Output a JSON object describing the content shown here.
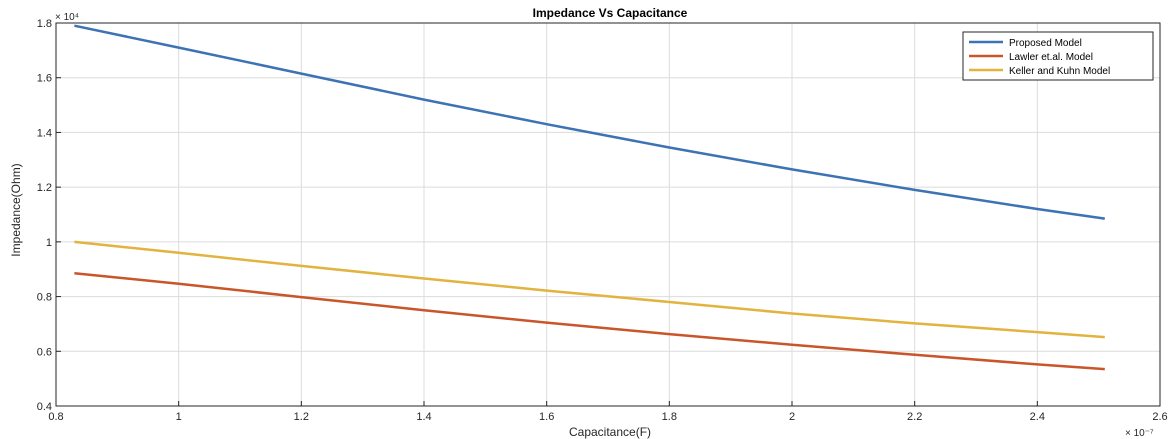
{
  "chart_data": {
    "type": "line",
    "title": "Impedance Vs Capacitance",
    "xlabel": "Capacitance(F)",
    "ylabel": "Impedance(Ohm)",
    "x_multiplier": "× 10⁻⁷",
    "y_multiplier": "× 10⁴",
    "xlim": [
      0.8,
      2.6
    ],
    "ylim": [
      0.4,
      1.8
    ],
    "x_ticks": [
      "0.8",
      "1",
      "1.2",
      "1.4",
      "1.6",
      "1.8",
      "2",
      "2.2",
      "2.4",
      "2.6"
    ],
    "y_ticks": [
      "0.4",
      "0.6",
      "0.8",
      "1",
      "1.2",
      "1.4",
      "1.6",
      "1.8"
    ],
    "grid": true,
    "legend_position": "top-right",
    "x": [
      0.83,
      1.0,
      1.2,
      1.4,
      1.6,
      1.8,
      2.0,
      2.2,
      2.4,
      2.51
    ],
    "series": [
      {
        "name": "Proposed Model",
        "color": "#3d72b4",
        "values": [
          1.79,
          1.71,
          1.615,
          1.52,
          1.43,
          1.345,
          1.265,
          1.19,
          1.12,
          1.085
        ]
      },
      {
        "name": "Lawler et.al. Model",
        "color": "#c8562a",
        "values": [
          0.885,
          0.847,
          0.798,
          0.75,
          0.705,
          0.663,
          0.624,
          0.587,
          0.552,
          0.535
        ]
      },
      {
        "name": "Keller and Kuhn Model",
        "color": "#e2b33f",
        "values": [
          1.0,
          0.96,
          0.912,
          0.866,
          0.822,
          0.78,
          0.738,
          0.702,
          0.67,
          0.652
        ]
      }
    ]
  }
}
